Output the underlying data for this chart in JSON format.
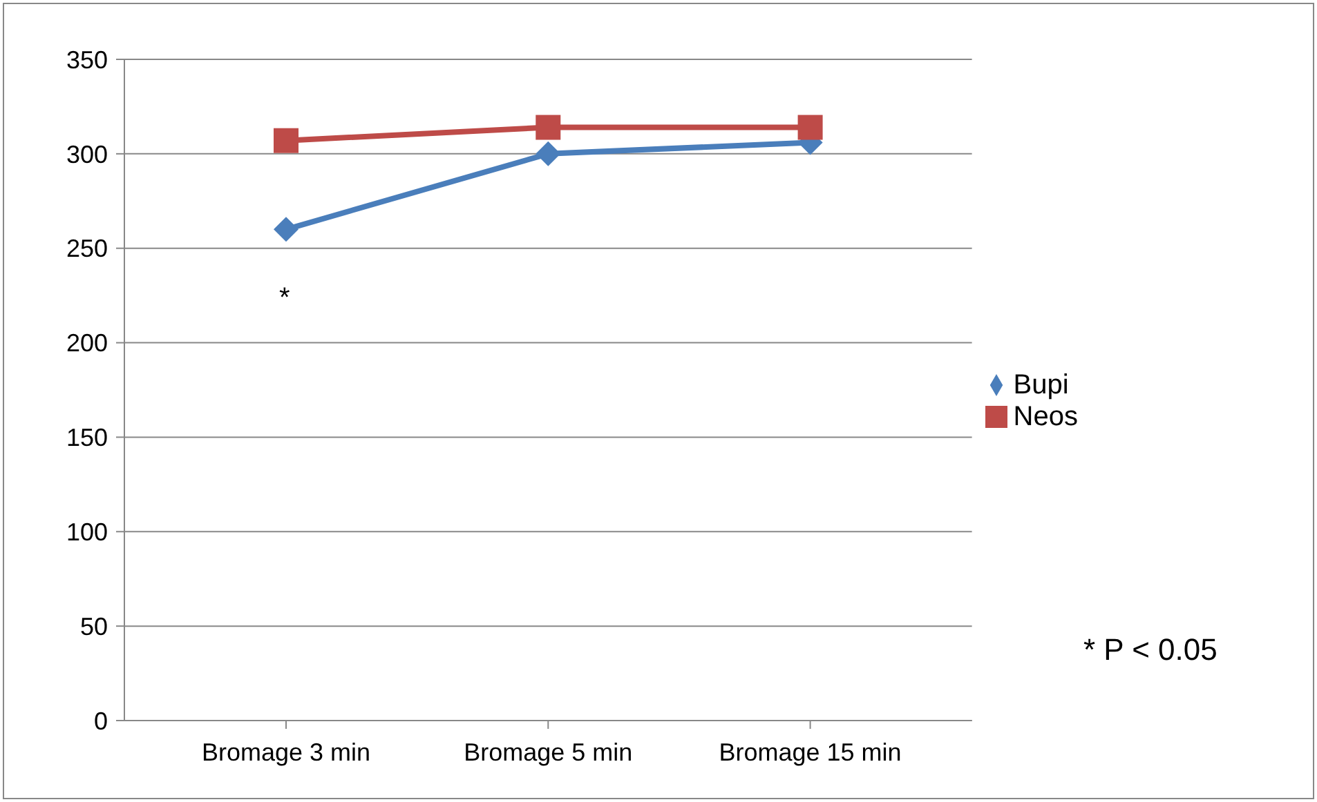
{
  "chart_data": {
    "type": "line",
    "categories": [
      "Bromage 3 min",
      "Bromage 5 min",
      "Bromage 15 min"
    ],
    "series": [
      {
        "name": "Bupi",
        "color": "#4a7ebb",
        "values": [
          260,
          300,
          306
        ],
        "marker": "diamond"
      },
      {
        "name": "Neos",
        "color": "#be4b48",
        "values": [
          307,
          314,
          314
        ],
        "marker": "square"
      }
    ],
    "ylim": [
      0,
      350
    ],
    "yticks": [
      0,
      50,
      100,
      150,
      200,
      250,
      300,
      350
    ],
    "grid": "y",
    "legend": "right",
    "annotations": [
      "*",
      "* P < 0.05"
    ]
  }
}
